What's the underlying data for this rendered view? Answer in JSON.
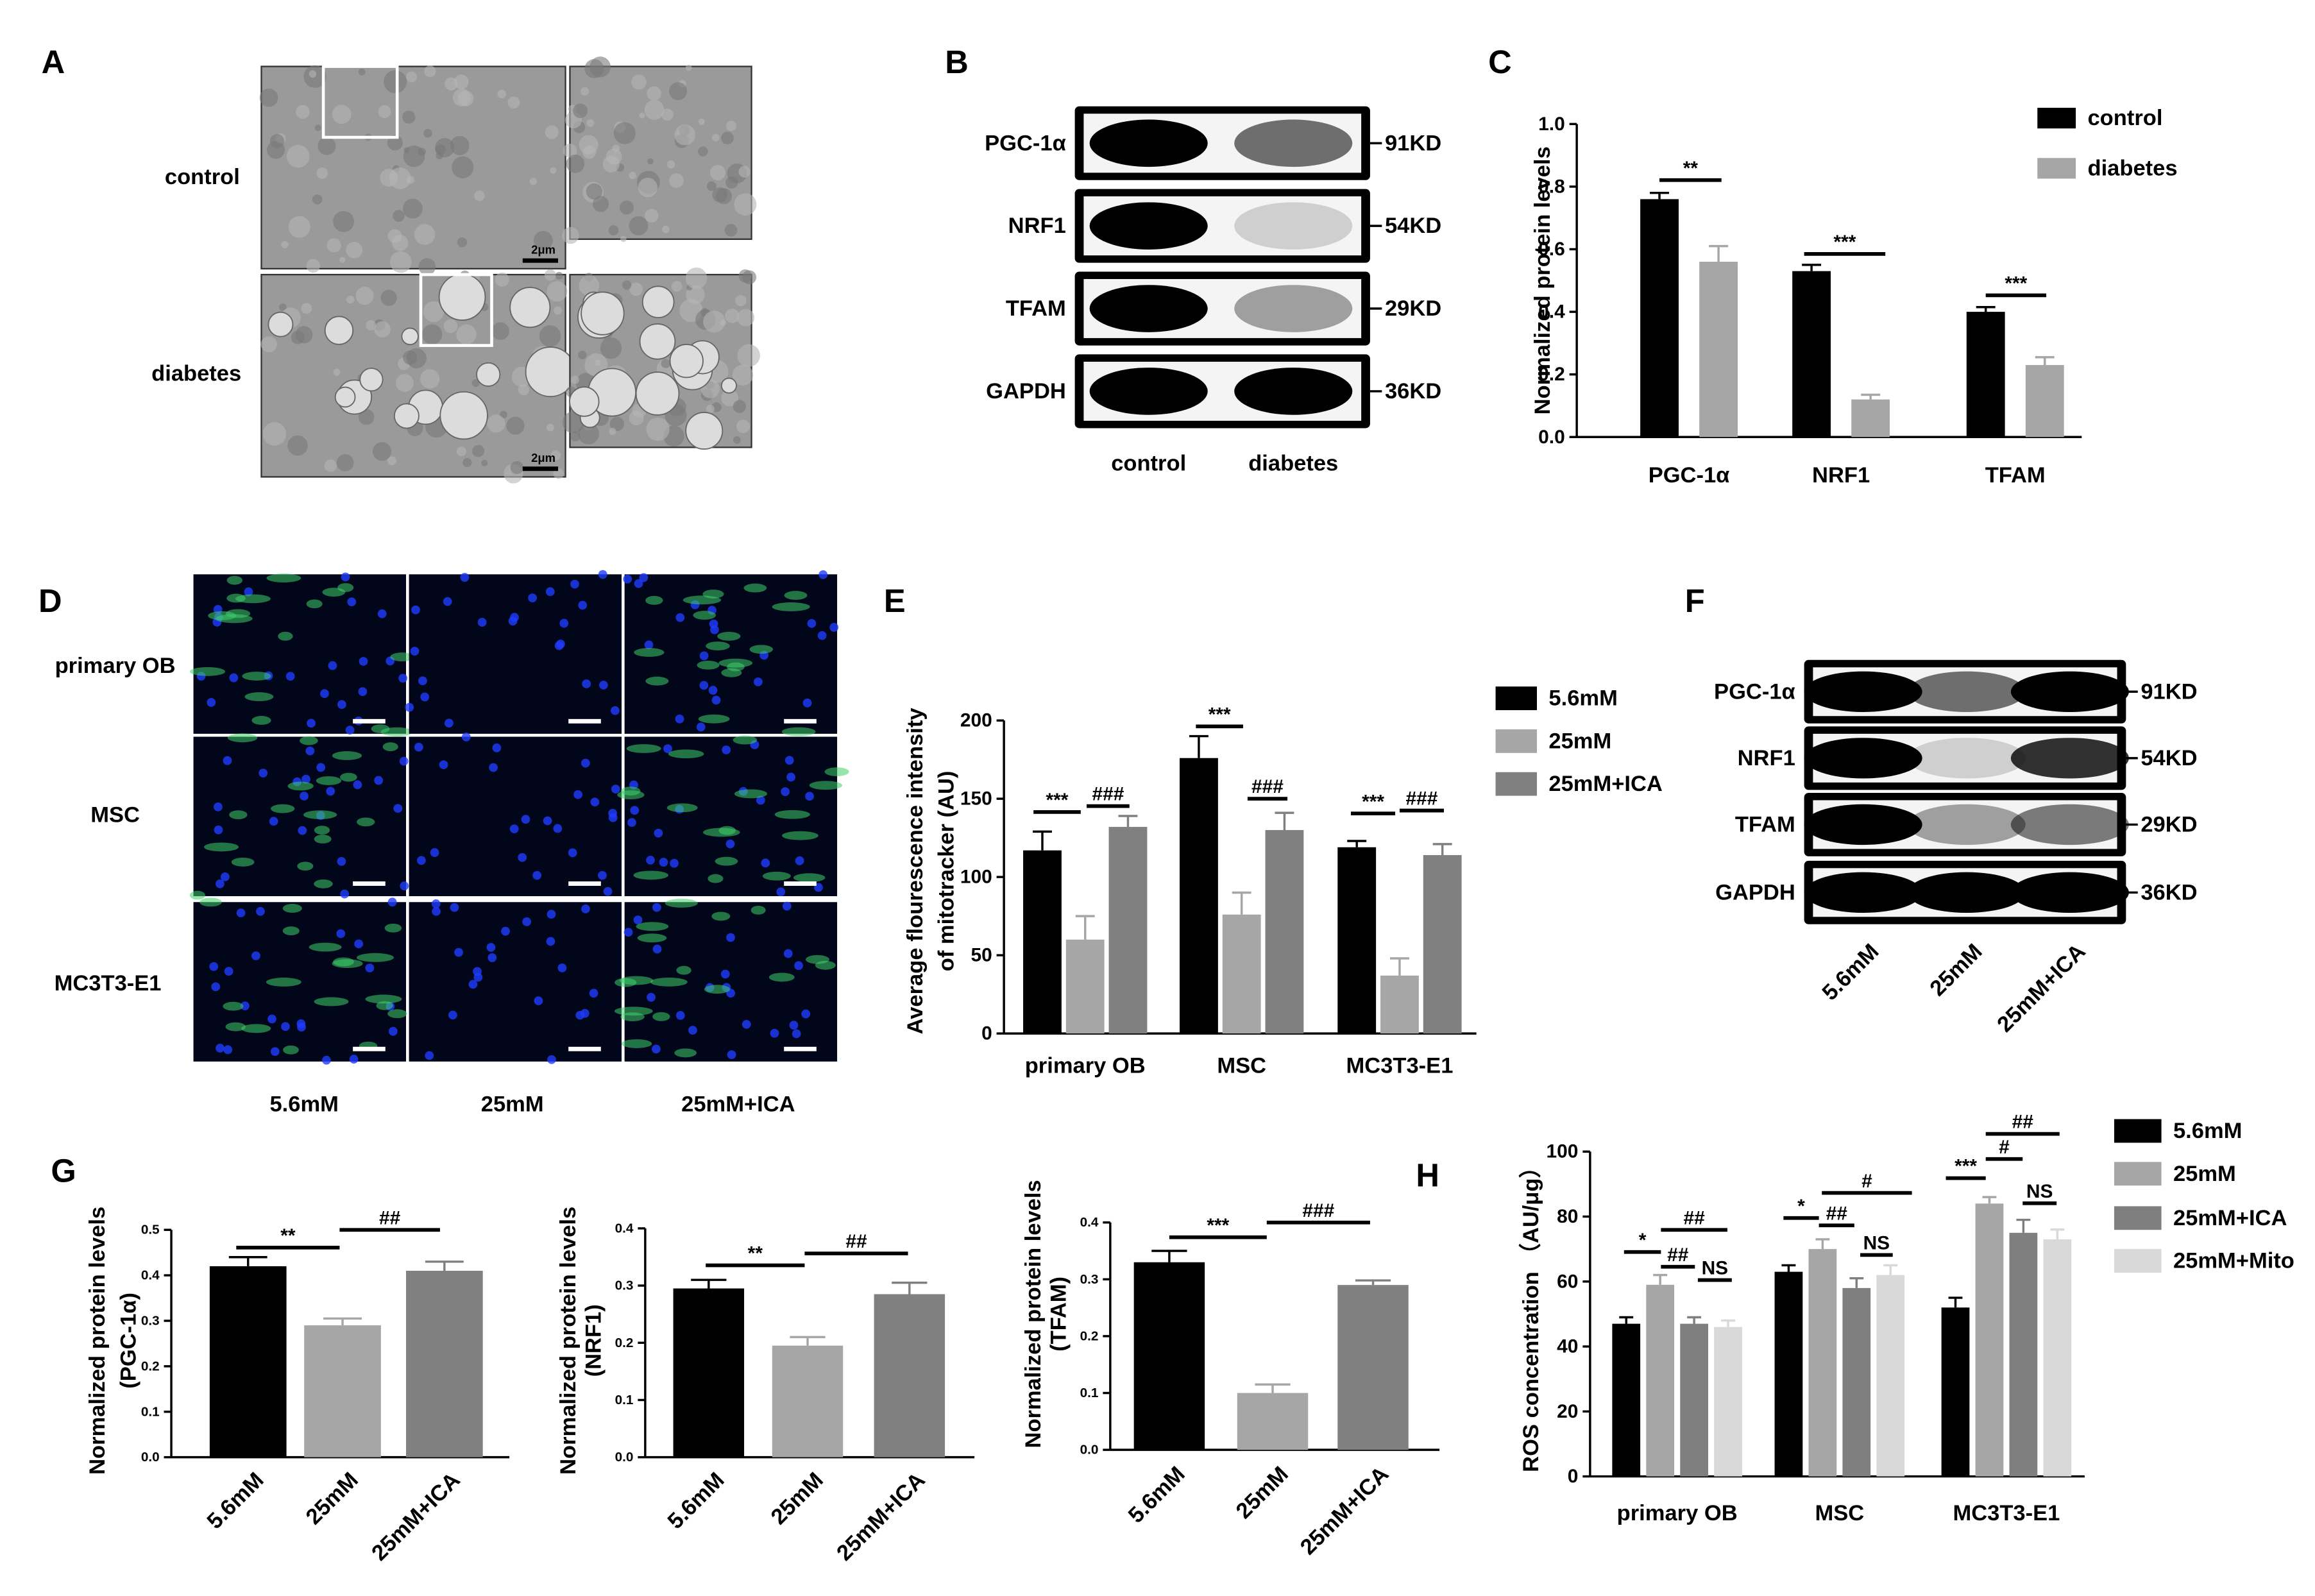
{
  "panel_labels": [
    "A",
    "B",
    "C",
    "D",
    "E",
    "F",
    "G",
    "H"
  ],
  "panel_a": {
    "rows": [
      "control",
      "diabetes"
    ],
    "scale_bar": "2μm"
  },
  "panel_b": {
    "proteins": [
      "PGC-1α",
      "NRF1",
      "TFAM",
      "GAPDH"
    ],
    "sizes": [
      "91KD",
      "54KD",
      "29KD",
      "36KD"
    ],
    "lanes": [
      "control",
      "diabetes"
    ]
  },
  "panel_d": {
    "rows": [
      "primary OB",
      "MSC",
      "MC3T3-E1"
    ],
    "columns": [
      "5.6mM",
      "25mM",
      "25mM+ICA"
    ]
  },
  "panel_f": {
    "proteins": [
      "PGC-1α",
      "NRF1",
      "TFAM",
      "GAPDH"
    ],
    "sizes": [
      "91KD",
      "54KD",
      "29KD",
      "36KD"
    ],
    "lanes": [
      "5.6mM",
      "25mM",
      "25mM+ICA"
    ]
  },
  "chart_data": [
    {
      "type": "bar",
      "y_label": [
        "Normalized protein levels"
      ],
      "categories": [
        "PGC-1α",
        "NRF1",
        "TFAM"
      ],
      "series": [
        {
          "name": "control",
          "color": "#000000",
          "values": [
            0.76,
            0.53,
            0.4
          ],
          "errors": [
            0.02,
            0.02,
            0.015
          ]
        },
        {
          "name": "diabetes",
          "color": "#a6a6a6",
          "values": [
            0.56,
            0.12,
            0.23
          ],
          "errors": [
            0.05,
            0.015,
            0.025
          ]
        }
      ],
      "ylim": [
        0,
        1.0
      ],
      "yticks": [
        {
          "value": 0,
          "label": "0.0"
        },
        0.2,
        0.4,
        0.6,
        0.8,
        {
          "value": 1,
          "label": "1.0"
        }
      ],
      "annotations": [
        "**",
        "***",
        "***"
      ]
    },
    {
      "type": "bar",
      "y_label": [
        "Average flourescence intensity",
        "of mitotracker (AU)"
      ],
      "categories": [
        "primary OB",
        "MSC",
        "MC3T3-E1"
      ],
      "series": [
        {
          "name": "5.6mM",
          "color": "#000000",
          "values": [
            117,
            176,
            119
          ],
          "errors": [
            12,
            14,
            4
          ]
        },
        {
          "name": "25mM",
          "color": "#a6a6a6",
          "values": [
            60,
            76,
            37
          ],
          "errors": [
            15,
            14,
            11
          ]
        },
        {
          "name": "25mM+ICA",
          "color": "#808080",
          "values": [
            132,
            130,
            114
          ],
          "errors": [
            7,
            11,
            7
          ]
        }
      ],
      "ylim": [
        0,
        200
      ],
      "yticks": [
        0,
        50,
        100,
        150,
        200
      ],
      "annotations": [
        "***",
        "###",
        "***",
        "###",
        "***",
        "###"
      ]
    },
    {
      "type": "bar",
      "y_label": [
        "Normalized protein levels",
        "(PGC-1α)"
      ],
      "categories": [
        "5.6mM",
        "25mM",
        "25mM+ICA"
      ],
      "values": [
        0.42,
        0.29,
        0.41
      ],
      "errors": [
        0.02,
        0.015,
        0.02
      ],
      "colors": [
        "#000000",
        "#a6a6a6",
        "#808080"
      ],
      "ylim": [
        0,
        0.5
      ],
      "yticks": [
        {
          "value": 0,
          "label": "0.0"
        },
        0.1,
        0.2,
        0.3,
        0.4,
        0.5
      ],
      "annotations": [
        "**",
        "##"
      ]
    },
    {
      "type": "bar",
      "y_label": [
        "Normalized protein levels",
        "(NRF1)"
      ],
      "categories": [
        "5.6mM",
        "25mM",
        "25mM+ICA"
      ],
      "values": [
        0.295,
        0.195,
        0.285
      ],
      "errors": [
        0.015,
        0.015,
        0.02
      ],
      "colors": [
        "#000000",
        "#a6a6a6",
        "#808080"
      ],
      "ylim": [
        0,
        0.4
      ],
      "yticks": [
        {
          "value": 0,
          "label": "0.0"
        },
        0.1,
        0.2,
        0.3,
        0.4
      ],
      "annotations": [
        "**",
        "##"
      ]
    },
    {
      "type": "bar",
      "y_label": [
        "Normalized protein levels",
        "(TFAM)"
      ],
      "categories": [
        "5.6mM",
        "25mM",
        "25mM+ICA"
      ],
      "values": [
        0.33,
        0.1,
        0.29
      ],
      "errors": [
        0.02,
        0.015,
        0.008
      ],
      "colors": [
        "#000000",
        "#a6a6a6",
        "#808080"
      ],
      "ylim": [
        0,
        0.4
      ],
      "yticks": [
        {
          "value": 0,
          "label": "0.0"
        },
        0.1,
        0.2,
        0.3,
        0.4
      ],
      "annotations": [
        "***",
        "###"
      ]
    },
    {
      "type": "bar",
      "y_label": [
        "ROS concentration （AU/μg）"
      ],
      "categories": [
        "primary OB",
        "MSC",
        "MC3T3-E1"
      ],
      "series": [
        {
          "name": "5.6mM",
          "color": "#000000",
          "values": [
            47,
            63,
            52
          ],
          "errors": [
            2,
            2,
            3
          ]
        },
        {
          "name": "25mM",
          "color": "#a6a6a6",
          "values": [
            59,
            70,
            84
          ],
          "errors": [
            3,
            3,
            2
          ]
        },
        {
          "name": "25mM+ICA",
          "color": "#7f7f7f",
          "values": [
            47,
            58,
            75
          ],
          "errors": [
            2,
            3,
            4
          ]
        },
        {
          "name": "25mM+Mito",
          "color": "#d9d9d9",
          "values": [
            46,
            62,
            73
          ],
          "errors": [
            2,
            3,
            3
          ]
        }
      ],
      "ylim": [
        0,
        100
      ],
      "yticks": [
        0,
        20,
        40,
        60,
        80,
        100
      ],
      "annotations": [
        "*",
        "##",
        "##",
        "NS",
        "*",
        "##",
        "#",
        "NS",
        "***",
        "#",
        "##",
        "NS"
      ]
    }
  ]
}
